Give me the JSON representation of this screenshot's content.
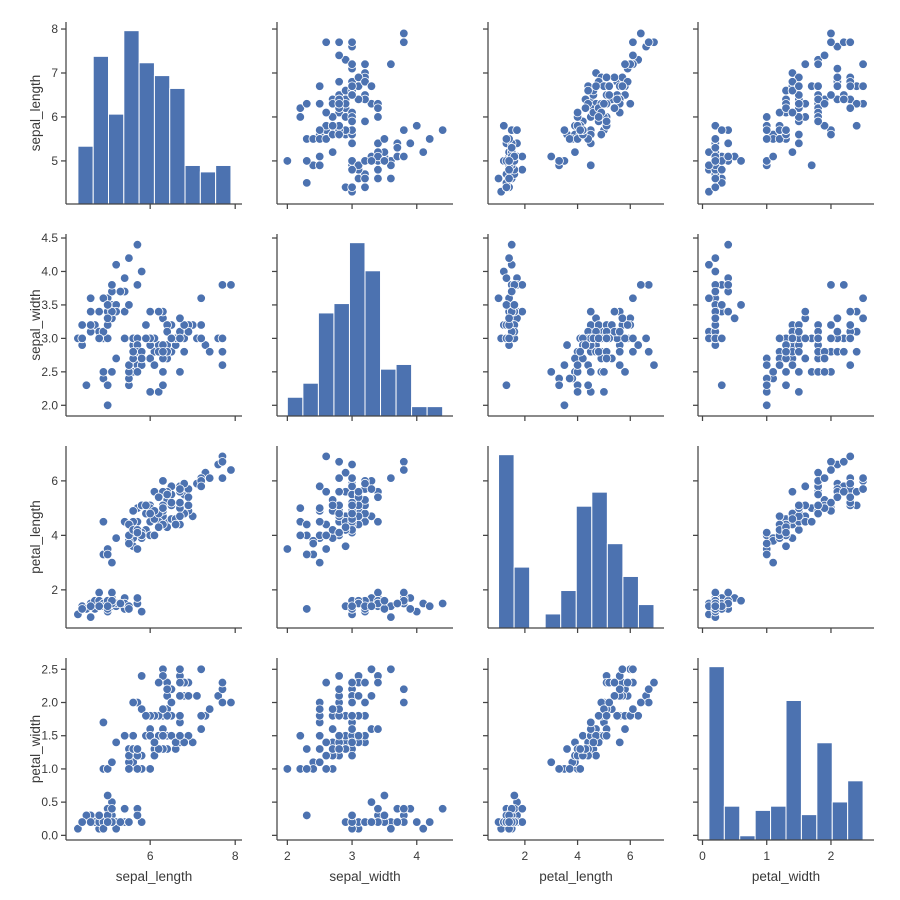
{
  "chart_data": {
    "type": "scatter",
    "layout": "pairplot",
    "diagonal": "hist",
    "hist_bins": 10,
    "grid": false,
    "colors": {
      "marker": "#4c72b0",
      "marker_edge": "#ffffff",
      "bar": "#4c72b0",
      "spine": "#444444",
      "text": "#3a3a3a"
    },
    "variables": [
      "sepal_length",
      "sepal_width",
      "petal_length",
      "petal_width"
    ],
    "axes": {
      "sepal_length": {
        "label": "sepal_length",
        "lim": [
          4.02,
          8.16
        ],
        "x_ticks": [
          6,
          8
        ],
        "x_tick_labels": [
          "6",
          "8"
        ],
        "y_ticks": [
          5,
          6,
          7,
          8
        ],
        "y_tick_labels": [
          "5",
          "6",
          "7",
          "8"
        ]
      },
      "sepal_width": {
        "label": "sepal_width",
        "lim": [
          1.84,
          4.56
        ],
        "x_ticks": [
          2,
          3,
          4
        ],
        "x_tick_labels": [
          "2",
          "3",
          "4"
        ],
        "y_ticks": [
          2.0,
          2.5,
          3.0,
          3.5,
          4.0,
          4.5
        ],
        "y_tick_labels": [
          "2.0",
          "2.5",
          "3.0",
          "3.5",
          "4.0",
          "4.5"
        ]
      },
      "petal_length": {
        "label": "petal_length",
        "lim": [
          0.6,
          7.28
        ],
        "x_ticks": [
          2,
          4,
          6
        ],
        "x_tick_labels": [
          "2",
          "4",
          "6"
        ],
        "y_ticks": [
          2,
          4,
          6
        ],
        "y_tick_labels": [
          "2",
          "4",
          "6"
        ]
      },
      "petal_width": {
        "label": "petal_width",
        "lim": [
          -0.07,
          2.67
        ],
        "x_ticks": [
          0,
          1,
          2
        ],
        "x_tick_labels": [
          "0",
          "1",
          "2"
        ],
        "y_ticks": [
          0.0,
          0.5,
          1.0,
          1.5,
          2.0,
          2.5
        ],
        "y_tick_labels": [
          "0.0",
          "0.5",
          "1.0",
          "1.5",
          "2.0",
          "2.5"
        ]
      }
    },
    "rows": [
      [
        5.1,
        3.5,
        1.4,
        0.2
      ],
      [
        4.9,
        3.0,
        1.4,
        0.2
      ],
      [
        4.7,
        3.2,
        1.3,
        0.2
      ],
      [
        4.6,
        3.1,
        1.5,
        0.2
      ],
      [
        5.0,
        3.6,
        1.4,
        0.2
      ],
      [
        5.4,
        3.9,
        1.7,
        0.4
      ],
      [
        4.6,
        3.4,
        1.4,
        0.3
      ],
      [
        5.0,
        3.4,
        1.5,
        0.2
      ],
      [
        4.4,
        2.9,
        1.4,
        0.2
      ],
      [
        4.9,
        3.1,
        1.5,
        0.1
      ],
      [
        5.4,
        3.7,
        1.5,
        0.2
      ],
      [
        4.8,
        3.4,
        1.6,
        0.2
      ],
      [
        4.8,
        3.0,
        1.4,
        0.1
      ],
      [
        4.3,
        3.0,
        1.1,
        0.1
      ],
      [
        5.8,
        4.0,
        1.2,
        0.2
      ],
      [
        5.7,
        4.4,
        1.5,
        0.4
      ],
      [
        5.4,
        3.9,
        1.3,
        0.4
      ],
      [
        5.1,
        3.5,
        1.4,
        0.3
      ],
      [
        5.7,
        3.8,
        1.7,
        0.3
      ],
      [
        5.1,
        3.8,
        1.5,
        0.3
      ],
      [
        5.4,
        3.4,
        1.7,
        0.2
      ],
      [
        5.1,
        3.7,
        1.5,
        0.4
      ],
      [
        4.6,
        3.6,
        1.0,
        0.2
      ],
      [
        5.1,
        3.3,
        1.7,
        0.5
      ],
      [
        4.8,
        3.4,
        1.9,
        0.2
      ],
      [
        5.0,
        3.0,
        1.6,
        0.2
      ],
      [
        5.0,
        3.4,
        1.6,
        0.4
      ],
      [
        5.2,
        3.5,
        1.5,
        0.2
      ],
      [
        5.2,
        3.4,
        1.4,
        0.2
      ],
      [
        4.7,
        3.2,
        1.6,
        0.2
      ],
      [
        4.8,
        3.1,
        1.6,
        0.2
      ],
      [
        5.4,
        3.4,
        1.5,
        0.4
      ],
      [
        5.2,
        4.1,
        1.5,
        0.1
      ],
      [
        5.5,
        4.2,
        1.4,
        0.2
      ],
      [
        4.9,
        3.1,
        1.5,
        0.2
      ],
      [
        5.0,
        3.2,
        1.2,
        0.2
      ],
      [
        5.5,
        3.5,
        1.3,
        0.2
      ],
      [
        4.9,
        3.6,
        1.4,
        0.1
      ],
      [
        4.4,
        3.0,
        1.3,
        0.2
      ],
      [
        5.1,
        3.4,
        1.5,
        0.2
      ],
      [
        5.0,
        3.5,
        1.3,
        0.3
      ],
      [
        4.5,
        2.3,
        1.3,
        0.3
      ],
      [
        4.4,
        3.2,
        1.3,
        0.2
      ],
      [
        5.0,
        3.5,
        1.6,
        0.6
      ],
      [
        5.1,
        3.8,
        1.9,
        0.4
      ],
      [
        4.8,
        3.0,
        1.4,
        0.3
      ],
      [
        5.1,
        3.8,
        1.6,
        0.2
      ],
      [
        4.6,
        3.2,
        1.4,
        0.2
      ],
      [
        5.3,
        3.7,
        1.5,
        0.2
      ],
      [
        5.0,
        3.3,
        1.4,
        0.2
      ],
      [
        7.0,
        3.2,
        4.7,
        1.4
      ],
      [
        6.4,
        3.2,
        4.5,
        1.5
      ],
      [
        6.9,
        3.1,
        4.9,
        1.5
      ],
      [
        5.5,
        2.3,
        4.0,
        1.3
      ],
      [
        6.5,
        2.8,
        4.6,
        1.5
      ],
      [
        5.7,
        2.8,
        4.5,
        1.3
      ],
      [
        6.3,
        3.3,
        4.7,
        1.6
      ],
      [
        4.9,
        2.4,
        3.3,
        1.0
      ],
      [
        6.6,
        2.9,
        4.6,
        1.3
      ],
      [
        5.2,
        2.7,
        3.9,
        1.4
      ],
      [
        5.0,
        2.0,
        3.5,
        1.0
      ],
      [
        5.9,
        3.0,
        4.2,
        1.5
      ],
      [
        6.0,
        2.2,
        4.0,
        1.0
      ],
      [
        6.1,
        2.9,
        4.7,
        1.4
      ],
      [
        5.6,
        2.9,
        3.6,
        1.3
      ],
      [
        6.7,
        3.1,
        4.4,
        1.4
      ],
      [
        5.6,
        3.0,
        4.5,
        1.5
      ],
      [
        5.8,
        2.7,
        4.1,
        1.0
      ],
      [
        6.2,
        2.2,
        4.5,
        1.5
      ],
      [
        5.6,
        2.5,
        3.9,
        1.1
      ],
      [
        5.9,
        3.2,
        4.8,
        1.8
      ],
      [
        6.1,
        2.8,
        4.0,
        1.3
      ],
      [
        6.3,
        2.5,
        4.9,
        1.5
      ],
      [
        6.1,
        2.8,
        4.7,
        1.2
      ],
      [
        6.4,
        2.9,
        4.3,
        1.3
      ],
      [
        6.6,
        3.0,
        4.4,
        1.4
      ],
      [
        6.8,
        2.8,
        4.8,
        1.4
      ],
      [
        6.7,
        3.0,
        5.0,
        1.7
      ],
      [
        6.0,
        2.9,
        4.5,
        1.5
      ],
      [
        5.7,
        2.6,
        3.5,
        1.0
      ],
      [
        5.5,
        2.4,
        3.8,
        1.1
      ],
      [
        5.5,
        2.4,
        3.7,
        1.0
      ],
      [
        5.8,
        2.7,
        3.9,
        1.2
      ],
      [
        6.0,
        2.7,
        5.1,
        1.6
      ],
      [
        5.4,
        3.0,
        4.5,
        1.5
      ],
      [
        6.0,
        3.4,
        4.5,
        1.6
      ],
      [
        6.7,
        3.1,
        4.7,
        1.5
      ],
      [
        6.3,
        2.3,
        4.4,
        1.3
      ],
      [
        5.6,
        3.0,
        4.1,
        1.3
      ],
      [
        5.5,
        2.5,
        4.0,
        1.3
      ],
      [
        5.5,
        2.6,
        4.4,
        1.2
      ],
      [
        6.1,
        3.0,
        4.6,
        1.4
      ],
      [
        5.8,
        2.6,
        4.0,
        1.2
      ],
      [
        5.0,
        2.3,
        3.3,
        1.0
      ],
      [
        5.6,
        2.7,
        4.2,
        1.3
      ],
      [
        5.7,
        3.0,
        4.2,
        1.2
      ],
      [
        5.7,
        2.9,
        4.2,
        1.3
      ],
      [
        6.2,
        2.9,
        4.3,
        1.3
      ],
      [
        5.1,
        2.5,
        3.0,
        1.1
      ],
      [
        5.7,
        2.8,
        4.1,
        1.3
      ],
      [
        6.3,
        3.3,
        6.0,
        2.5
      ],
      [
        5.8,
        2.7,
        5.1,
        1.9
      ],
      [
        7.1,
        3.0,
        5.9,
        2.1
      ],
      [
        6.3,
        2.9,
        5.6,
        1.8
      ],
      [
        6.5,
        3.0,
        5.8,
        2.2
      ],
      [
        7.6,
        3.0,
        6.6,
        2.1
      ],
      [
        4.9,
        2.5,
        4.5,
        1.7
      ],
      [
        7.3,
        2.9,
        6.3,
        1.8
      ],
      [
        6.7,
        2.5,
        5.8,
        1.8
      ],
      [
        7.2,
        3.6,
        6.1,
        2.5
      ],
      [
        6.5,
        3.2,
        5.1,
        2.0
      ],
      [
        6.4,
        2.7,
        5.3,
        1.9
      ],
      [
        6.8,
        3.0,
        5.5,
        2.1
      ],
      [
        5.7,
        2.5,
        5.0,
        2.0
      ],
      [
        5.8,
        2.8,
        5.1,
        2.4
      ],
      [
        6.4,
        3.2,
        5.3,
        2.3
      ],
      [
        6.5,
        3.0,
        5.5,
        1.8
      ],
      [
        7.7,
        3.8,
        6.7,
        2.2
      ],
      [
        7.7,
        2.6,
        6.9,
        2.3
      ],
      [
        6.0,
        2.2,
        5.0,
        1.5
      ],
      [
        6.9,
        3.2,
        5.7,
        2.3
      ],
      [
        5.6,
        2.8,
        4.9,
        2.0
      ],
      [
        7.7,
        2.8,
        6.7,
        2.0
      ],
      [
        6.3,
        2.7,
        4.9,
        1.8
      ],
      [
        6.7,
        3.3,
        5.7,
        2.1
      ],
      [
        7.2,
        3.2,
        6.0,
        1.8
      ],
      [
        6.2,
        2.8,
        4.8,
        1.8
      ],
      [
        6.1,
        3.0,
        4.9,
        1.8
      ],
      [
        6.4,
        2.8,
        5.6,
        2.1
      ],
      [
        7.2,
        3.0,
        5.8,
        1.6
      ],
      [
        7.4,
        2.8,
        6.1,
        1.9
      ],
      [
        7.9,
        3.8,
        6.4,
        2.0
      ],
      [
        6.4,
        2.8,
        5.6,
        2.2
      ],
      [
        6.3,
        2.8,
        5.1,
        1.5
      ],
      [
        6.1,
        2.6,
        5.6,
        1.4
      ],
      [
        7.7,
        3.0,
        6.1,
        2.3
      ],
      [
        6.3,
        3.4,
        5.6,
        2.4
      ],
      [
        6.4,
        3.1,
        5.5,
        1.8
      ],
      [
        6.0,
        3.0,
        4.8,
        1.8
      ],
      [
        6.9,
        3.1,
        5.4,
        2.1
      ],
      [
        6.7,
        3.1,
        5.6,
        2.4
      ],
      [
        6.9,
        3.1,
        5.1,
        2.3
      ],
      [
        5.8,
        2.7,
        5.1,
        1.9
      ],
      [
        6.8,
        3.2,
        5.9,
        2.3
      ],
      [
        6.7,
        3.3,
        5.7,
        2.5
      ],
      [
        6.7,
        3.0,
        5.2,
        2.3
      ],
      [
        6.3,
        2.5,
        5.0,
        1.9
      ],
      [
        6.5,
        3.0,
        5.2,
        2.0
      ],
      [
        6.2,
        3.4,
        5.4,
        2.3
      ],
      [
        5.9,
        3.0,
        5.1,
        1.8
      ]
    ]
  }
}
